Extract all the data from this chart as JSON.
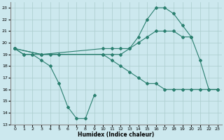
{
  "xlabel": "Humidex (Indice chaleur)",
  "background_color": "#cce8ee",
  "grid_color": "#aacccc",
  "line_color": "#2a7f6f",
  "xlim": [
    -0.5,
    23.5
  ],
  "ylim": [
    13,
    23.5
  ],
  "yticks": [
    13,
    14,
    15,
    16,
    17,
    18,
    19,
    20,
    21,
    22,
    23
  ],
  "xticks": [
    0,
    1,
    2,
    3,
    4,
    5,
    6,
    7,
    8,
    9,
    10,
    11,
    12,
    13,
    14,
    15,
    16,
    17,
    18,
    19,
    20,
    21,
    22,
    23
  ],
  "line1_x": [
    0,
    1,
    2,
    3,
    4,
    5,
    6,
    7,
    8,
    9
  ],
  "line1_y": [
    19.5,
    19,
    19,
    18.5,
    18,
    16.5,
    14.5,
    13.5,
    13.5,
    15.5
  ],
  "line2_x": [
    0,
    1,
    2,
    3,
    4,
    5,
    10,
    11,
    12,
    13,
    14,
    15,
    16,
    17,
    18,
    19,
    20,
    21,
    22,
    23
  ],
  "line2_y": [
    19.5,
    19,
    19,
    19,
    19,
    19,
    19,
    19,
    19,
    19.5,
    20.5,
    22,
    23,
    23,
    22.5,
    21.5,
    20.5,
    18.5,
    16,
    16
  ],
  "line3_x": [
    0,
    3,
    10,
    11,
    12,
    13,
    14,
    15,
    16,
    17,
    18,
    19,
    20
  ],
  "line3_y": [
    19.5,
    19,
    19.5,
    19.5,
    19.5,
    19.5,
    20,
    20.5,
    21,
    21,
    21,
    20.5,
    20.5
  ],
  "line4_x": [
    0,
    3,
    10,
    11,
    12,
    13,
    14,
    15,
    16,
    17,
    18,
    19,
    20,
    21,
    22,
    23
  ],
  "line4_y": [
    19.5,
    19,
    19,
    18.5,
    18,
    17.5,
    17,
    16.5,
    16.5,
    16,
    16,
    16,
    16,
    16,
    16,
    16
  ]
}
